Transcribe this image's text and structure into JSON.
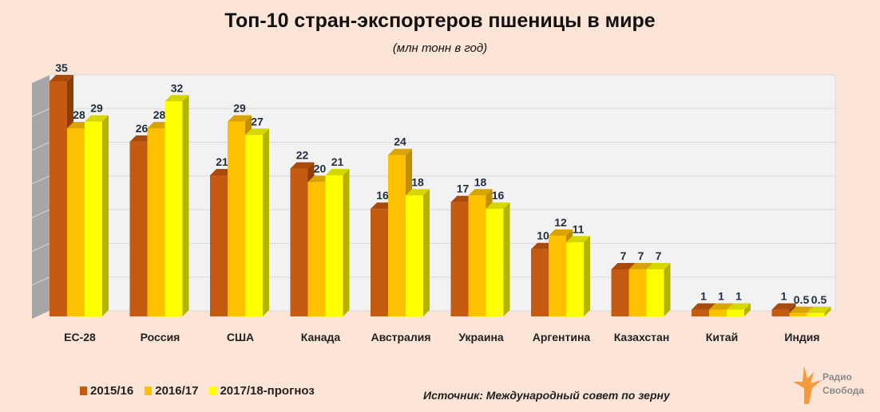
{
  "chart_data": {
    "type": "bar",
    "title": "Топ-10 стран-экспортеров пшеницы в мире",
    "subtitle": "(млн тонн в год)",
    "categories": [
      "ЕС-28",
      "Россия",
      "США",
      "Канада",
      "Австралия",
      "Украина",
      "Аргентина",
      "Казахстан",
      "Китай",
      "Индия"
    ],
    "series": [
      {
        "name": "2015/16",
        "color": "#c55a11",
        "values": [
          35,
          26,
          21,
          22,
          16,
          17,
          10,
          7,
          1,
          1
        ]
      },
      {
        "name": "2016/17",
        "color": "#ffc000",
        "values": [
          28,
          28,
          29,
          20,
          24,
          18,
          12,
          7,
          1,
          0.5
        ]
      },
      {
        "name": "2017/18-прогноз",
        "color": "#ffff00",
        "values": [
          29,
          32,
          27,
          21,
          18,
          16,
          11,
          7,
          1,
          0.5
        ]
      }
    ],
    "ylim": [
      0,
      35
    ],
    "grid": true,
    "legend": "bottom-left",
    "style": "3d-column"
  },
  "source": "Источник: Международный совет по зерну",
  "logo": {
    "line1": "Радио",
    "line2": "Свобода"
  }
}
